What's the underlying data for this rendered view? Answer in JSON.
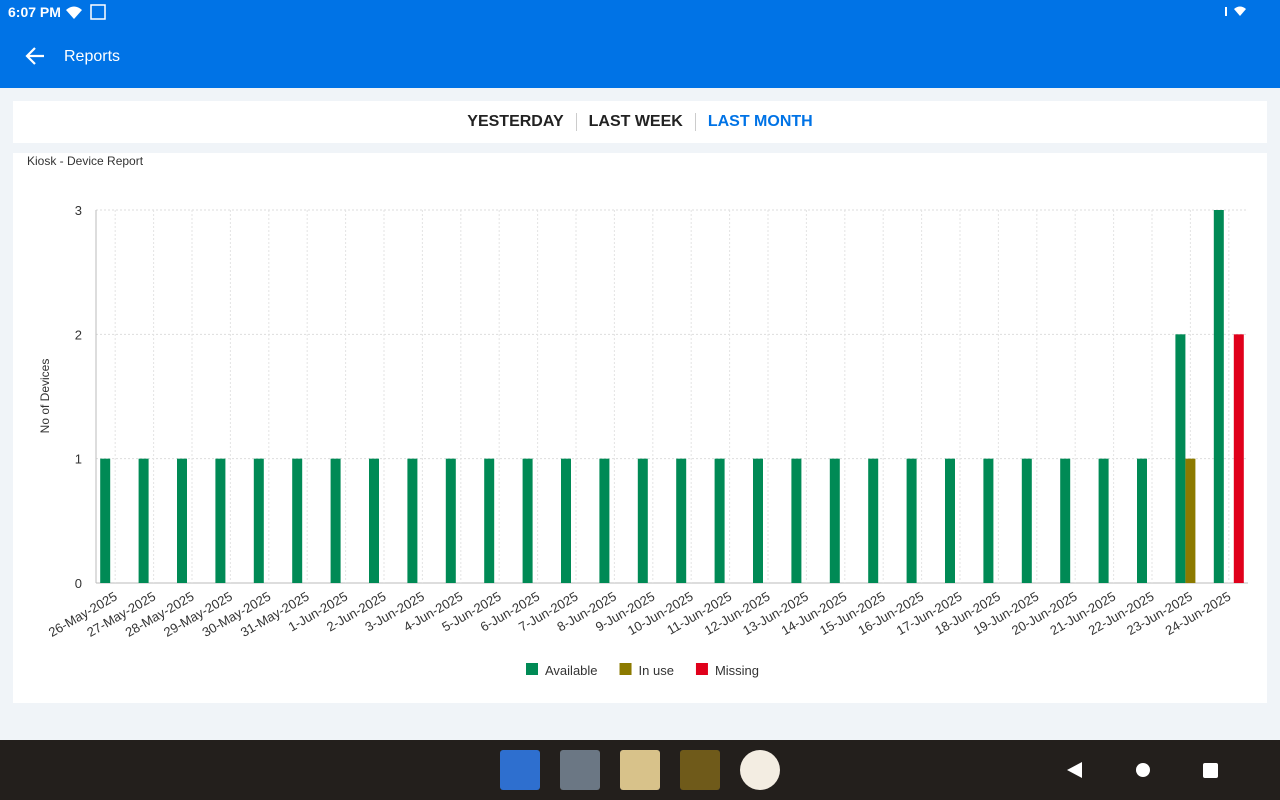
{
  "status_bar": {
    "time": "6:07 PM"
  },
  "header": {
    "title": "Reports"
  },
  "tabs": [
    {
      "label": "YESTERDAY",
      "selected": false
    },
    {
      "label": "LAST WEEK",
      "selected": false
    },
    {
      "label": "LAST MONTH",
      "selected": true
    }
  ],
  "chart_data": {
    "type": "bar",
    "title": "Kiosk - Device Report",
    "y_label": "No of Devices",
    "categories": [
      "26-May-2025",
      "27-May-2025",
      "28-May-2025",
      "29-May-2025",
      "30-May-2025",
      "31-May-2025",
      "1-Jun-2025",
      "2-Jun-2025",
      "3-Jun-2025",
      "4-Jun-2025",
      "5-Jun-2025",
      "6-Jun-2025",
      "7-Jun-2025",
      "8-Jun-2025",
      "9-Jun-2025",
      "10-Jun-2025",
      "11-Jun-2025",
      "12-Jun-2025",
      "13-Jun-2025",
      "14-Jun-2025",
      "15-Jun-2025",
      "16-Jun-2025",
      "17-Jun-2025",
      "18-Jun-2025",
      "19-Jun-2025",
      "20-Jun-2025",
      "21-Jun-2025",
      "22-Jun-2025",
      "23-Jun-2025",
      "24-Jun-2025"
    ],
    "series": [
      {
        "name": "Available",
        "color": "#008a55",
        "values": [
          1,
          1,
          1,
          1,
          1,
          1,
          1,
          1,
          1,
          1,
          1,
          1,
          1,
          1,
          1,
          1,
          1,
          1,
          1,
          1,
          1,
          1,
          1,
          1,
          1,
          1,
          1,
          1,
          2,
          3
        ]
      },
      {
        "name": "In use",
        "color": "#8c7a00",
        "values": [
          0,
          0,
          0,
          0,
          0,
          0,
          0,
          0,
          0,
          0,
          0,
          0,
          0,
          0,
          0,
          0,
          0,
          0,
          0,
          0,
          0,
          0,
          0,
          0,
          0,
          0,
          0,
          0,
          1,
          0
        ]
      },
      {
        "name": "Missing",
        "color": "#e0001b",
        "values": [
          0,
          0,
          0,
          0,
          0,
          0,
          0,
          0,
          0,
          0,
          0,
          0,
          0,
          0,
          0,
          0,
          0,
          0,
          0,
          0,
          0,
          0,
          0,
          0,
          0,
          0,
          0,
          0,
          0,
          2
        ]
      }
    ],
    "ylim": [
      0,
      3
    ],
    "yticks": [
      0,
      1,
      2,
      3
    ],
    "grid": true,
    "legend": "bottom"
  }
}
